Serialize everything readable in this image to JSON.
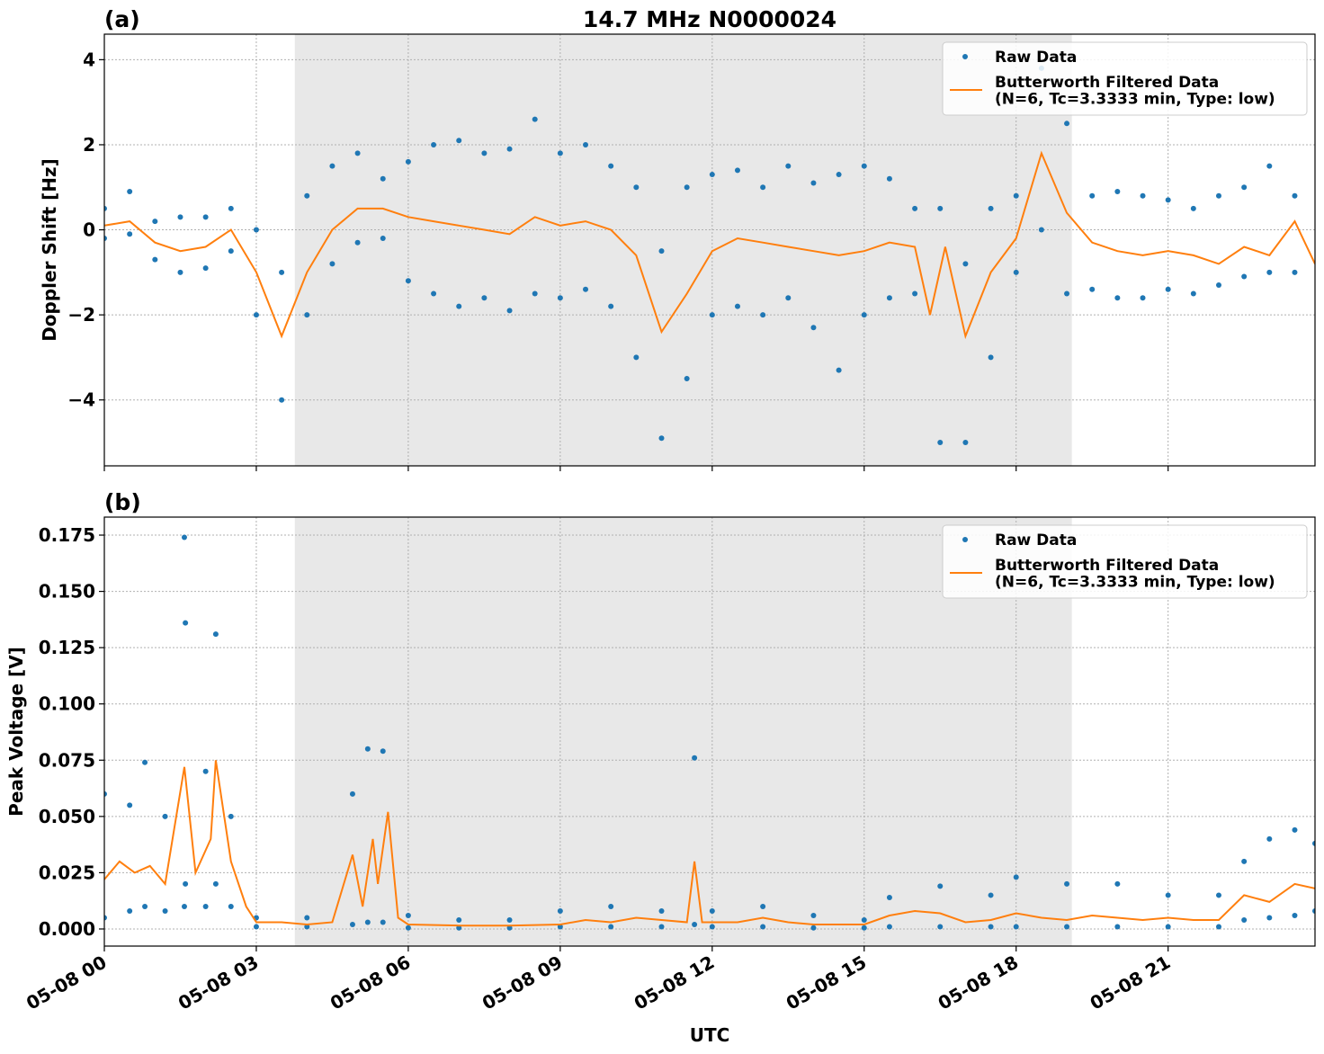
{
  "chart_data": [
    {
      "type": "line",
      "title": "14.7 MHz N0000024",
      "panel_label": "(a)",
      "ylabel": "Doppler Shift [Hz]",
      "xlim": [
        0,
        23.9
      ],
      "ylim": [
        -5.55,
        4.6
      ],
      "grid": true,
      "legend": "upper right",
      "shaded_span": [
        3.76,
        19.1
      ],
      "xticks": [
        0,
        3,
        6,
        9,
        12,
        15,
        18,
        21
      ],
      "yticks": [
        {
          "value": -4,
          "label": "−4"
        },
        {
          "value": -2,
          "label": "−2"
        },
        0,
        2,
        4
      ],
      "series": [
        {
          "name": "Raw Data",
          "kind": "scatter",
          "color": "#1f77b4",
          "x": [
            0,
            0,
            0.5,
            0.5,
            1,
            1,
            1.5,
            1.5,
            2,
            2,
            2.5,
            2.5,
            3,
            3,
            3.5,
            3.5,
            4,
            4,
            4.5,
            4.5,
            5,
            5,
            5.5,
            5.5,
            6,
            6,
            6.5,
            6.5,
            7,
            7,
            7.5,
            7.5,
            8,
            8,
            8.5,
            8.5,
            9,
            9,
            9.5,
            9.5,
            10,
            10,
            10.5,
            10.5,
            11,
            11,
            11.5,
            11.5,
            12,
            12,
            12.5,
            12.5,
            13,
            13,
            13.5,
            13.5,
            14,
            14,
            14.5,
            14.5,
            15,
            15,
            15.5,
            15.5,
            16,
            16,
            16.5,
            16.5,
            17,
            17,
            17.5,
            17.5,
            18,
            18,
            18.5,
            18.5,
            19,
            19,
            19.5,
            19.5,
            20,
            20,
            20.5,
            20.5,
            21,
            21,
            21.5,
            21.5,
            22,
            22,
            22.5,
            22.5,
            23,
            23,
            23.5,
            23.5
          ],
          "values": [
            0.5,
            -0.2,
            0.9,
            -0.1,
            0.2,
            -0.7,
            0.3,
            -1.0,
            0.3,
            -0.9,
            0.5,
            -0.5,
            0.0,
            -2.0,
            -1.0,
            -4.0,
            0.8,
            -2.0,
            1.5,
            -0.8,
            1.8,
            -0.3,
            1.2,
            -0.2,
            1.6,
            -1.2,
            2.0,
            -1.5,
            2.1,
            -1.8,
            1.8,
            -1.6,
            1.9,
            -1.9,
            2.6,
            -1.5,
            1.8,
            -1.6,
            2.0,
            -1.4,
            1.5,
            -1.8,
            1.0,
            -3.0,
            -0.5,
            -4.9,
            1.0,
            -3.5,
            1.3,
            -2.0,
            1.4,
            -1.8,
            1.0,
            -2.0,
            1.5,
            -1.6,
            1.1,
            -2.3,
            1.3,
            -3.3,
            1.5,
            -2.0,
            1.2,
            -1.6,
            0.5,
            -1.5,
            0.5,
            -5.0,
            -0.8,
            -5.0,
            0.5,
            -3.0,
            0.8,
            -1.0,
            3.8,
            0.0,
            2.5,
            -1.5,
            0.8,
            -1.4,
            0.9,
            -1.6,
            0.8,
            -1.6,
            0.7,
            -1.4,
            0.5,
            -1.5,
            0.8,
            -1.3,
            1.0,
            -1.1,
            1.5,
            -1.0,
            0.8,
            -1.0
          ]
        },
        {
          "name": "Butterworth Filtered Data\n(N=6, Tc=3.3333 min, Type: low)",
          "kind": "line",
          "color": "#ff7f0e",
          "x": [
            0,
            0.5,
            1,
            1.5,
            2,
            2.5,
            3,
            3.5,
            4,
            4.5,
            5,
            5.5,
            6,
            6.5,
            7,
            7.5,
            8,
            8.5,
            9,
            9.5,
            10,
            10.5,
            11,
            11.5,
            12,
            12.5,
            13,
            13.5,
            14,
            14.5,
            15,
            15.5,
            16,
            16.3,
            16.6,
            17,
            17.5,
            18,
            18.5,
            19,
            19.5,
            20,
            20.5,
            21,
            21.5,
            22,
            22.5,
            23,
            23.5,
            23.9
          ],
          "values": [
            0.1,
            0.2,
            -0.3,
            -0.5,
            -0.4,
            0.0,
            -1.0,
            -2.5,
            -1.0,
            0.0,
            0.5,
            0.5,
            0.3,
            0.2,
            0.1,
            0.0,
            -0.1,
            0.3,
            0.1,
            0.2,
            0.0,
            -0.6,
            -2.4,
            -1.5,
            -0.5,
            -0.2,
            -0.3,
            -0.4,
            -0.5,
            -0.6,
            -0.5,
            -0.3,
            -0.4,
            -2.0,
            -0.4,
            -2.5,
            -1.0,
            -0.2,
            1.8,
            0.4,
            -0.3,
            -0.5,
            -0.6,
            -0.5,
            -0.6,
            -0.8,
            -0.4,
            -0.6,
            0.2,
            -0.8
          ]
        }
      ]
    },
    {
      "type": "line",
      "panel_label": "(b)",
      "ylabel": "Peak Voltage [V]",
      "xlabel": "UTC",
      "xlim": [
        0,
        23.9
      ],
      "ylim": [
        -0.0076,
        0.183
      ],
      "grid": true,
      "legend": "upper right",
      "shaded_span": [
        3.76,
        19.1
      ],
      "xticks": [
        {
          "value": 0,
          "label": "05-08 00"
        },
        {
          "value": 3,
          "label": "05-08 03"
        },
        {
          "value": 6,
          "label": "05-08 06"
        },
        {
          "value": 9,
          "label": "05-08 09"
        },
        {
          "value": 12,
          "label": "05-08 12"
        },
        {
          "value": 15,
          "label": "05-08 15"
        },
        {
          "value": 18,
          "label": "05-08 18"
        },
        {
          "value": 21,
          "label": "05-08 21"
        }
      ],
      "yticks": [
        {
          "value": 0,
          "label": "0.000"
        },
        0.025,
        {
          "value": 0.05,
          "label": "0.050"
        },
        0.075,
        {
          "value": 0.1,
          "label": "0.100"
        },
        0.125,
        {
          "value": 0.15,
          "label": "0.150"
        },
        0.175
      ],
      "series": [
        {
          "name": "Raw Data",
          "kind": "scatter",
          "color": "#1f77b4",
          "x": [
            0,
            0,
            0.5,
            0.5,
            0.8,
            0.8,
            1.2,
            1.2,
            1.58,
            1.58,
            1.6,
            1.6,
            2,
            2,
            2.2,
            2.2,
            2.5,
            2.5,
            3,
            3,
            4,
            4,
            4.9,
            4.9,
            5.2,
            5.2,
            5.5,
            5.5,
            6,
            6,
            7,
            7,
            8,
            8,
            9,
            9,
            10,
            10,
            11,
            11,
            11.65,
            11.65,
            12,
            12,
            13,
            13,
            14,
            14,
            15,
            15,
            15.5,
            15.5,
            16.5,
            16.5,
            17.5,
            17.5,
            18,
            18,
            19,
            19,
            20,
            20,
            21,
            21,
            22,
            22,
            22.5,
            22.5,
            23,
            23,
            23.5,
            23.5,
            23.9,
            23.9
          ],
          "values": [
            0.06,
            0.005,
            0.055,
            0.008,
            0.074,
            0.01,
            0.05,
            0.008,
            0.174,
            0.01,
            0.136,
            0.02,
            0.07,
            0.01,
            0.131,
            0.02,
            0.05,
            0.01,
            0.005,
            0.001,
            0.005,
            0.001,
            0.06,
            0.002,
            0.08,
            0.003,
            0.079,
            0.003,
            0.006,
            0.0005,
            0.004,
            0.0005,
            0.004,
            0.0005,
            0.008,
            0.001,
            0.01,
            0.001,
            0.008,
            0.001,
            0.076,
            0.002,
            0.008,
            0.001,
            0.01,
            0.001,
            0.006,
            0.0005,
            0.004,
            0.0005,
            0.014,
            0.001,
            0.019,
            0.001,
            0.015,
            0.001,
            0.023,
            0.001,
            0.02,
            0.001,
            0.02,
            0.001,
            0.015,
            0.001,
            0.015,
            0.001,
            0.03,
            0.004,
            0.04,
            0.005,
            0.044,
            0.006,
            0.038,
            0.008
          ]
        },
        {
          "name": "Butterworth Filtered Data\n(N=6, Tc=3.3333 min, Type: low)",
          "kind": "line",
          "color": "#ff7f0e",
          "x": [
            0,
            0.3,
            0.6,
            0.9,
            1.2,
            1.58,
            1.8,
            2.1,
            2.2,
            2.5,
            2.8,
            3,
            3.5,
            4,
            4.5,
            4.9,
            5.1,
            5.3,
            5.4,
            5.6,
            5.8,
            6,
            7,
            8,
            9,
            9.5,
            10,
            10.5,
            11,
            11.5,
            11.65,
            11.8,
            12.5,
            13,
            13.5,
            14,
            14.5,
            15,
            15.5,
            16,
            16.5,
            17,
            17.5,
            18,
            18.5,
            19,
            19.5,
            20,
            20.5,
            21,
            21.5,
            22,
            22.5,
            23,
            23.5,
            23.9
          ],
          "values": [
            0.022,
            0.03,
            0.025,
            0.028,
            0.02,
            0.072,
            0.025,
            0.04,
            0.075,
            0.03,
            0.01,
            0.003,
            0.003,
            0.002,
            0.003,
            0.033,
            0.01,
            0.04,
            0.02,
            0.052,
            0.005,
            0.002,
            0.0015,
            0.0015,
            0.002,
            0.004,
            0.003,
            0.005,
            0.004,
            0.003,
            0.03,
            0.003,
            0.003,
            0.005,
            0.003,
            0.002,
            0.002,
            0.002,
            0.006,
            0.008,
            0.007,
            0.003,
            0.004,
            0.007,
            0.005,
            0.004,
            0.006,
            0.005,
            0.004,
            0.005,
            0.004,
            0.004,
            0.015,
            0.012,
            0.02,
            0.018
          ]
        }
      ]
    }
  ]
}
